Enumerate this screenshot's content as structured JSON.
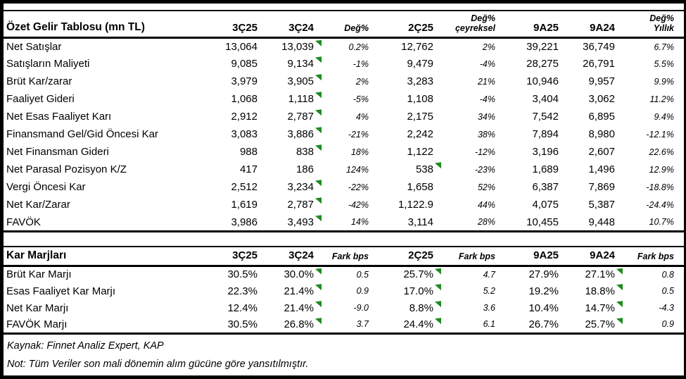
{
  "colors": {
    "marker_green": "#1f8b1f",
    "border_black": "#000000"
  },
  "income_table": {
    "title": "Özet Gelir Tablosu (mn TL)",
    "columns": [
      {
        "label": "3Ç25"
      },
      {
        "label": "3Ç24"
      },
      {
        "label": "Değ%"
      },
      {
        "label": "2Ç25"
      },
      {
        "top": "Değ%",
        "label": "çeyreksel"
      },
      {
        "label": "9A25"
      },
      {
        "label": "9A24"
      },
      {
        "top": "Değ%",
        "label": "Yıllık"
      }
    ],
    "rows": [
      {
        "label": "Net Satışlar",
        "cells": [
          {
            "v": "13,064"
          },
          {
            "v": "13,039",
            "m": true
          },
          {
            "v": "0.2%"
          },
          {
            "v": "12,762"
          },
          {
            "v": "2%"
          },
          {
            "v": "39,221"
          },
          {
            "v": "36,749"
          },
          {
            "v": "6.7%"
          }
        ]
      },
      {
        "label": "Satışların Maliyeti",
        "cells": [
          {
            "v": "9,085"
          },
          {
            "v": "9,134",
            "m": true
          },
          {
            "v": "-1%"
          },
          {
            "v": "9,479"
          },
          {
            "v": "-4%"
          },
          {
            "v": "28,275"
          },
          {
            "v": "26,791"
          },
          {
            "v": "5.5%"
          }
        ]
      },
      {
        "label": "Brüt Kar/zarar",
        "cells": [
          {
            "v": "3,979"
          },
          {
            "v": "3,905",
            "m": true
          },
          {
            "v": "2%"
          },
          {
            "v": "3,283"
          },
          {
            "v": "21%"
          },
          {
            "v": "10,946"
          },
          {
            "v": "9,957"
          },
          {
            "v": "9.9%"
          }
        ]
      },
      {
        "label": "Faaliyet Gideri",
        "cells": [
          {
            "v": "1,068"
          },
          {
            "v": "1,118",
            "m": true
          },
          {
            "v": "-5%"
          },
          {
            "v": "1,108"
          },
          {
            "v": "-4%"
          },
          {
            "v": "3,404"
          },
          {
            "v": "3,062"
          },
          {
            "v": "11.2%"
          }
        ]
      },
      {
        "label": "Net Esas Faaliyet Karı",
        "cells": [
          {
            "v": "2,912"
          },
          {
            "v": "2,787",
            "m": true
          },
          {
            "v": "4%"
          },
          {
            "v": "2,175"
          },
          {
            "v": "34%"
          },
          {
            "v": "7,542"
          },
          {
            "v": "6,895"
          },
          {
            "v": "9.4%"
          }
        ]
      },
      {
        "label": "Finansmand Gel/Gid Öncesi Kar",
        "cells": [
          {
            "v": "3,083"
          },
          {
            "v": "3,886",
            "m": true
          },
          {
            "v": "-21%"
          },
          {
            "v": "2,242"
          },
          {
            "v": "38%"
          },
          {
            "v": "7,894"
          },
          {
            "v": "8,980"
          },
          {
            "v": "-12.1%"
          }
        ]
      },
      {
        "label": "Net Finansman Gideri",
        "cells": [
          {
            "v": "988"
          },
          {
            "v": "838",
            "m": true
          },
          {
            "v": "18%"
          },
          {
            "v": "1,122"
          },
          {
            "v": "-12%"
          },
          {
            "v": "3,196"
          },
          {
            "v": "2,607"
          },
          {
            "v": "22.6%"
          }
        ]
      },
      {
        "label": "Net Parasal Pozisyon K/Z",
        "cells": [
          {
            "v": "417"
          },
          {
            "v": "186"
          },
          {
            "v": "124%"
          },
          {
            "v": "538",
            "m": true
          },
          {
            "v": "-23%"
          },
          {
            "v": "1,689"
          },
          {
            "v": "1,496"
          },
          {
            "v": "12.9%"
          }
        ]
      },
      {
        "label": "Vergi Öncesi Kar",
        "cells": [
          {
            "v": "2,512"
          },
          {
            "v": "3,234",
            "m": true
          },
          {
            "v": "-22%"
          },
          {
            "v": "1,658"
          },
          {
            "v": "52%"
          },
          {
            "v": "6,387"
          },
          {
            "v": "7,869"
          },
          {
            "v": "-18.8%"
          }
        ]
      },
      {
        "label": "Net Kar/Zarar",
        "cells": [
          {
            "v": "1,619"
          },
          {
            "v": "2,787",
            "m": true
          },
          {
            "v": "-42%"
          },
          {
            "v": "1,122.9"
          },
          {
            "v": "44%"
          },
          {
            "v": "4,075"
          },
          {
            "v": "5,387"
          },
          {
            "v": "-24.4%"
          }
        ]
      },
      {
        "label": "FAVÖK",
        "cells": [
          {
            "v": "3,986"
          },
          {
            "v": "3,493",
            "m": true
          },
          {
            "v": "14%"
          },
          {
            "v": "3,114"
          },
          {
            "v": "28%"
          },
          {
            "v": "10,455"
          },
          {
            "v": "9,448"
          },
          {
            "v": "10.7%"
          }
        ]
      }
    ]
  },
  "margin_table": {
    "title": "Kar Marjları",
    "columns": [
      {
        "label": "3Ç25"
      },
      {
        "label": "3Ç24"
      },
      {
        "label": "Fark bps"
      },
      {
        "label": "2Ç25"
      },
      {
        "label": "Fark bps"
      },
      {
        "label": "9A25"
      },
      {
        "label": "9A24"
      },
      {
        "label": "Fark bps"
      }
    ],
    "rows": [
      {
        "label": "Brüt Kar Marjı",
        "cells": [
          {
            "v": "30.5%"
          },
          {
            "v": "30.0%",
            "m": true
          },
          {
            "v": "0.5"
          },
          {
            "v": "25.7%",
            "m": true
          },
          {
            "v": "4.7"
          },
          {
            "v": "27.9%"
          },
          {
            "v": "27.1%",
            "m": true
          },
          {
            "v": "0.8"
          }
        ]
      },
      {
        "label": "Esas Faaliyet Kar Marjı",
        "cells": [
          {
            "v": "22.3%"
          },
          {
            "v": "21.4%",
            "m": true
          },
          {
            "v": "0.9"
          },
          {
            "v": "17.0%",
            "m": true
          },
          {
            "v": "5.2"
          },
          {
            "v": "19.2%"
          },
          {
            "v": "18.8%",
            "m": true
          },
          {
            "v": "0.5"
          }
        ]
      },
      {
        "label": "Net Kar Marjı",
        "cells": [
          {
            "v": "12.4%"
          },
          {
            "v": "21.4%",
            "m": true
          },
          {
            "v": "-9.0"
          },
          {
            "v": "8.8%",
            "m": true
          },
          {
            "v": "3.6"
          },
          {
            "v": "10.4%"
          },
          {
            "v": "14.7%",
            "m": true
          },
          {
            "v": "-4.3"
          }
        ]
      },
      {
        "label": "FAVÖK Marjı",
        "cells": [
          {
            "v": "30.5%"
          },
          {
            "v": "26.8%",
            "m": true
          },
          {
            "v": "3.7"
          },
          {
            "v": "24.4%",
            "m": true
          },
          {
            "v": "6.1"
          },
          {
            "v": "26.7%"
          },
          {
            "v": "25.7%",
            "m": true
          },
          {
            "v": "0.9"
          }
        ]
      }
    ]
  },
  "footer": {
    "source": "Kaynak: Finnet Analiz Expert, KAP",
    "note": "Not: Tüm Veriler son mali dönemin alım gücüne göre yansıtılmıştır."
  }
}
